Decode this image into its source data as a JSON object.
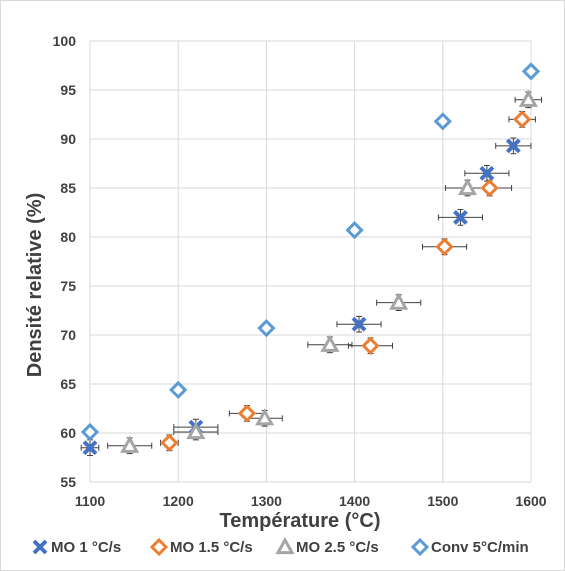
{
  "chart_data": {
    "type": "scatter",
    "title": "",
    "xlabel": "Température (°C)",
    "ylabel": "Densité relative (%)",
    "xlim": [
      1100,
      1600
    ],
    "ylim": [
      55,
      100
    ],
    "x_ticks": [
      "1100",
      "1200",
      "1300",
      "1400",
      "1500",
      "1600"
    ],
    "y_ticks": [
      "55",
      "60",
      "65",
      "70",
      "75",
      "80",
      "85",
      "90",
      "95",
      "100"
    ],
    "grid": true,
    "legend_position": "bottom",
    "series": [
      {
        "name": "MO 1 °C/s",
        "marker": "x",
        "color": "#4472C4",
        "points": [
          {
            "x": 1100,
            "y": 58.5,
            "xerr": 10,
            "yerr": 0.8
          },
          {
            "x": 1220,
            "y": 60.6,
            "xerr": 25,
            "yerr": 0.8
          },
          {
            "x": 1405,
            "y": 71.1,
            "xerr": 25,
            "yerr": 0.8
          },
          {
            "x": 1520,
            "y": 82.0,
            "xerr": 25,
            "yerr": 0.8
          },
          {
            "x": 1550,
            "y": 86.5,
            "xerr": 25,
            "yerr": 0.8
          },
          {
            "x": 1580,
            "y": 89.3,
            "xerr": 20,
            "yerr": 0.8
          }
        ]
      },
      {
        "name": "MO 1.5 °C/s",
        "marker": "diamond",
        "color": "#ED7D31",
        "points": [
          {
            "x": 1190,
            "y": 59.0,
            "xerr": 10,
            "yerr": 0.8
          },
          {
            "x": 1278,
            "y": 62.0,
            "xerr": 20,
            "yerr": 0.8
          },
          {
            "x": 1418,
            "y": 68.9,
            "xerr": 25,
            "yerr": 0.8
          },
          {
            "x": 1502,
            "y": 79.0,
            "xerr": 25,
            "yerr": 0.8
          },
          {
            "x": 1553,
            "y": 85.0,
            "xerr": 25,
            "yerr": 0.8
          },
          {
            "x": 1590,
            "y": 92.0,
            "xerr": 15,
            "yerr": 0.8
          }
        ]
      },
      {
        "name": "MO 2.5 °C/s",
        "marker": "triangle",
        "color": "#A5A5A5",
        "points": [
          {
            "x": 1145,
            "y": 58.7,
            "xerr": 25,
            "yerr": 0.8
          },
          {
            "x": 1220,
            "y": 60.1,
            "xerr": 25,
            "yerr": 0.8
          },
          {
            "x": 1298,
            "y": 61.5,
            "xerr": 20,
            "yerr": 0.8
          },
          {
            "x": 1372,
            "y": 69.0,
            "xerr": 25,
            "yerr": 0.8
          },
          {
            "x": 1450,
            "y": 73.3,
            "xerr": 25,
            "yerr": 0.8
          },
          {
            "x": 1528,
            "y": 85.0,
            "xerr": 25,
            "yerr": 0.8
          },
          {
            "x": 1597,
            "y": 94.0,
            "xerr": 15,
            "yerr": 0.8
          }
        ]
      },
      {
        "name": "Conv 5°C/min",
        "marker": "diamond-open",
        "color": "#5B9BD5",
        "points": [
          {
            "x": 1100,
            "y": 60.1,
            "xerr": 5,
            "yerr": 0.3
          },
          {
            "x": 1200,
            "y": 64.4,
            "xerr": 5,
            "yerr": 0.3
          },
          {
            "x": 1300,
            "y": 70.7,
            "xerr": 5,
            "yerr": 0.3
          },
          {
            "x": 1400,
            "y": 80.7,
            "xerr": 5,
            "yerr": 0.3
          },
          {
            "x": 1500,
            "y": 91.8,
            "xerr": 5,
            "yerr": 0.3
          },
          {
            "x": 1600,
            "y": 96.9,
            "xerr": 5,
            "yerr": 0.3
          }
        ]
      }
    ]
  }
}
